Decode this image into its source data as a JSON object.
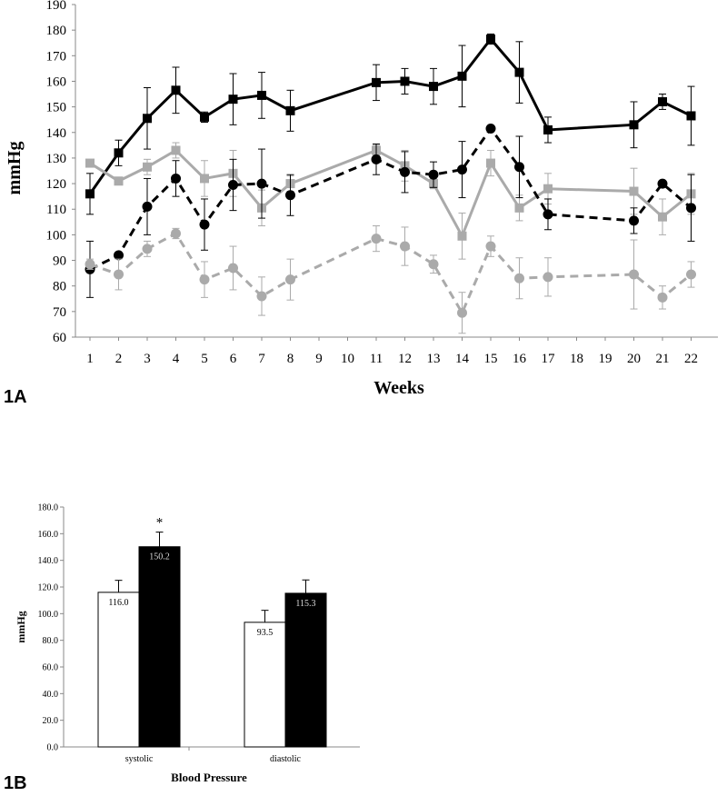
{
  "chart_data": [
    {
      "panel_label": "1A",
      "type": "line",
      "xlabel": "Weeks",
      "ylabel": "mmHg",
      "ylim": [
        60,
        190
      ],
      "yticks": [
        60,
        70,
        80,
        90,
        100,
        110,
        120,
        130,
        140,
        150,
        160,
        170,
        180,
        190
      ],
      "xtick_labels": [
        "1",
        "2",
        "3",
        "4",
        "5",
        "6",
        "7",
        "8",
        "9",
        "10",
        "11",
        "12",
        "13",
        "14",
        "15",
        "16",
        "17",
        "18",
        "19",
        "20",
        "21",
        "22"
      ],
      "grid": false,
      "series": [
        {
          "color": "#000000",
          "marker": "square",
          "line_style": "solid",
          "x": [
            1,
            2,
            3,
            4,
            5,
            6,
            7,
            8,
            11,
            12,
            13,
            14,
            15,
            16,
            17,
            20,
            21,
            22
          ],
          "y": [
            116,
            132,
            145.5,
            156.5,
            146,
            153,
            154.5,
            148.5,
            159.5,
            160,
            158,
            162,
            176.5,
            163.5,
            141,
            143,
            152,
            146.5
          ],
          "err": [
            8,
            5,
            12,
            9,
            2,
            10,
            9,
            8,
            7,
            5,
            7,
            12,
            2,
            12,
            5,
            9,
            3,
            11.5
          ]
        },
        {
          "color": "#aaaaaa",
          "marker": "square",
          "line_style": "solid",
          "x": [
            1,
            2,
            3,
            4,
            5,
            6,
            7,
            8,
            11,
            12,
            13,
            14,
            15,
            16,
            17,
            20,
            21,
            22
          ],
          "y": [
            128,
            121,
            126.5,
            133,
            122,
            124,
            110.5,
            120,
            133,
            127,
            120,
            99.5,
            128,
            110.5,
            118,
            117,
            107,
            116
          ],
          "err": [
            1,
            1,
            3,
            3,
            7,
            9,
            7,
            3,
            2,
            6,
            2,
            9,
            5,
            5,
            6,
            9,
            7,
            8
          ]
        },
        {
          "color": "#000000",
          "marker": "circle",
          "line_style": "dashed",
          "x": [
            1,
            2,
            3,
            4,
            5,
            6,
            7,
            8,
            11,
            12,
            13,
            14,
            15,
            16,
            17,
            20,
            21,
            22
          ],
          "y": [
            86.5,
            92,
            111,
            122,
            104,
            119.5,
            120,
            115.5,
            129.5,
            124.5,
            123.5,
            125.5,
            141.5,
            126.5,
            108,
            105.5,
            120,
            110.5
          ],
          "err": [
            11,
            1,
            11,
            7,
            10,
            10,
            13.5,
            8,
            6,
            8,
            5,
            11,
            1,
            12,
            6,
            5,
            1,
            13
          ]
        },
        {
          "color": "#aaaaaa",
          "marker": "circle",
          "line_style": "dashed",
          "x": [
            1,
            2,
            3,
            4,
            5,
            6,
            7,
            8,
            11,
            12,
            13,
            14,
            15,
            16,
            17,
            20,
            21,
            22
          ],
          "y": [
            88.5,
            84.5,
            94.5,
            100.5,
            82.5,
            87,
            76,
            82.5,
            98.5,
            95.5,
            88.5,
            69.5,
            95.5,
            83,
            83.5,
            84.5,
            75.5,
            84.5
          ],
          "err": [
            2,
            6,
            3,
            2,
            7,
            8.5,
            7.5,
            8,
            5,
            7.5,
            3.5,
            8,
            4,
            8,
            7.5,
            13.5,
            4.5,
            5
          ]
        }
      ]
    },
    {
      "panel_label": "1B",
      "type": "bar",
      "xlabel": "Blood Pressure",
      "ylabel": "mmHg",
      "ylim": [
        0,
        180
      ],
      "yticks": [
        "0.0",
        "20.0",
        "40.0",
        "60.0",
        "80.0",
        "100.0",
        "120.0",
        "140.0",
        "160.0",
        "180.0"
      ],
      "categories": [
        "systolic",
        "diastolic"
      ],
      "grid": false,
      "series": [
        {
          "color": "#ffffff",
          "values": [
            116.0,
            93.5
          ],
          "labels": [
            "116.0",
            "93.5"
          ],
          "err": [
            9,
            9
          ]
        },
        {
          "color": "#000000",
          "values": [
            150.2,
            115.3
          ],
          "labels": [
            "150.2",
            "115.3"
          ],
          "err": [
            11,
            10
          ]
        }
      ],
      "annotations": [
        {
          "text": "*",
          "category": "systolic",
          "series": 1
        }
      ]
    }
  ]
}
